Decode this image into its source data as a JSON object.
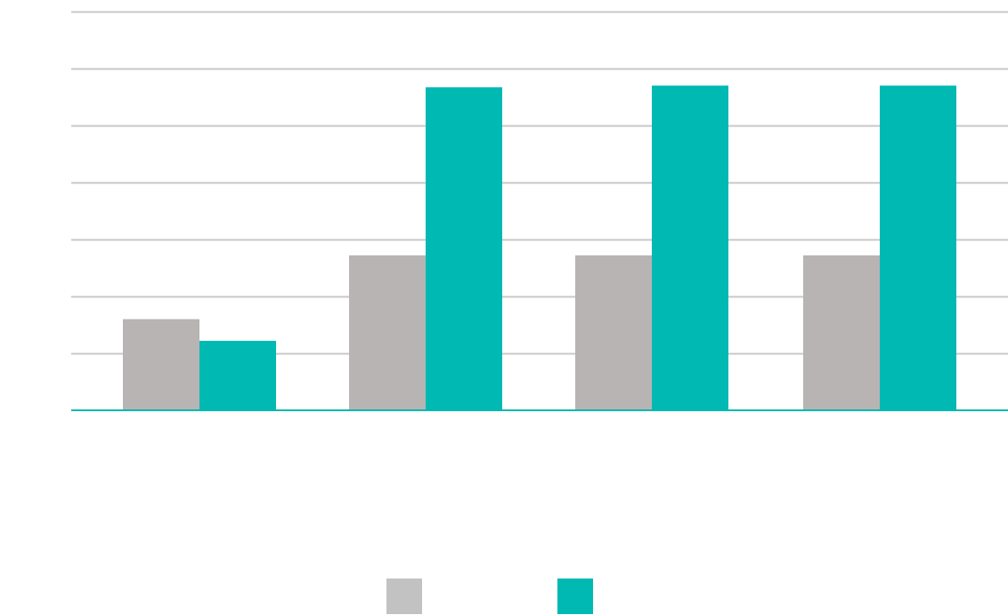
{
  "chart_data": {
    "type": "bar",
    "title": "",
    "xlabel": "",
    "ylabel": "",
    "categories": [
      "",
      "",
      "",
      ""
    ],
    "ylim": [
      0,
      7
    ],
    "grid": true,
    "legend_position": "bottom",
    "series": [
      {
        "name": "",
        "color": "#b8b4b3",
        "values": [
          1.6,
          2.72,
          2.72,
          2.72
        ]
      },
      {
        "name": "",
        "color": "#00b9b3",
        "values": [
          1.22,
          5.67,
          5.7,
          5.7
        ]
      }
    ]
  },
  "colors": {
    "gridline": "#c8c8c8",
    "baseline": "#00b9b3",
    "legend_series_1": "#c2c2c2",
    "legend_series_2": "#00b9b3"
  }
}
